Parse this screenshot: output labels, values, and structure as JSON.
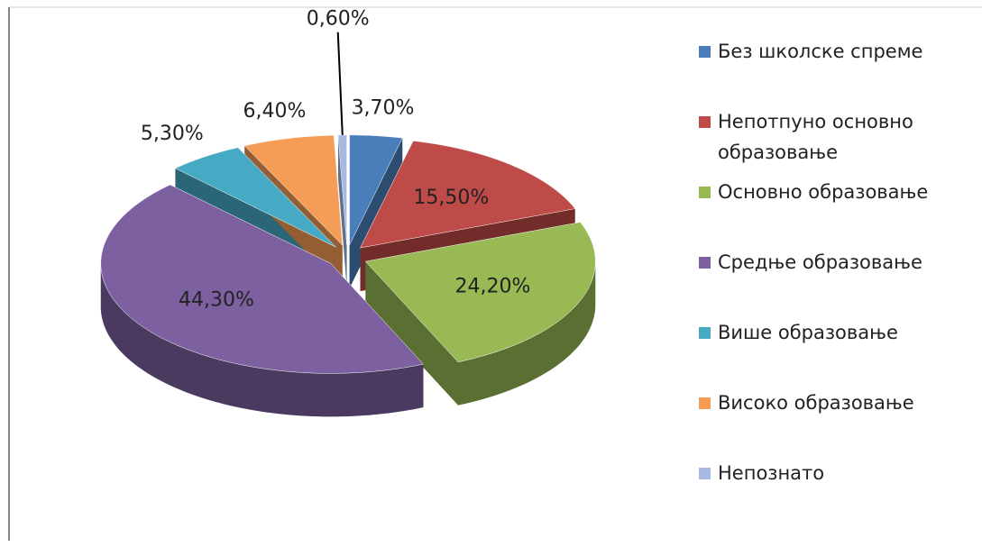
{
  "chart_data": {
    "type": "pie",
    "categories": [
      "Без школске спреме",
      "Непотпуно основно образовање",
      "Основно образовање",
      "Средње образовање",
      "Више образовање",
      "Високо образовање",
      "Непознато"
    ],
    "values": [
      3.7,
      15.5,
      24.2,
      44.3,
      5.3,
      6.4,
      0.6
    ],
    "value_labels": [
      "3,70%",
      "15,50%",
      "24,20%",
      "44,30%",
      "5,30%",
      "6,40%",
      "0,60%"
    ],
    "colors": [
      "#4a7ebb",
      "#be4b48",
      "#98b954",
      "#7d60a0",
      "#46aac5",
      "#f59d56",
      "#a7b9e3"
    ],
    "legend": "right"
  }
}
